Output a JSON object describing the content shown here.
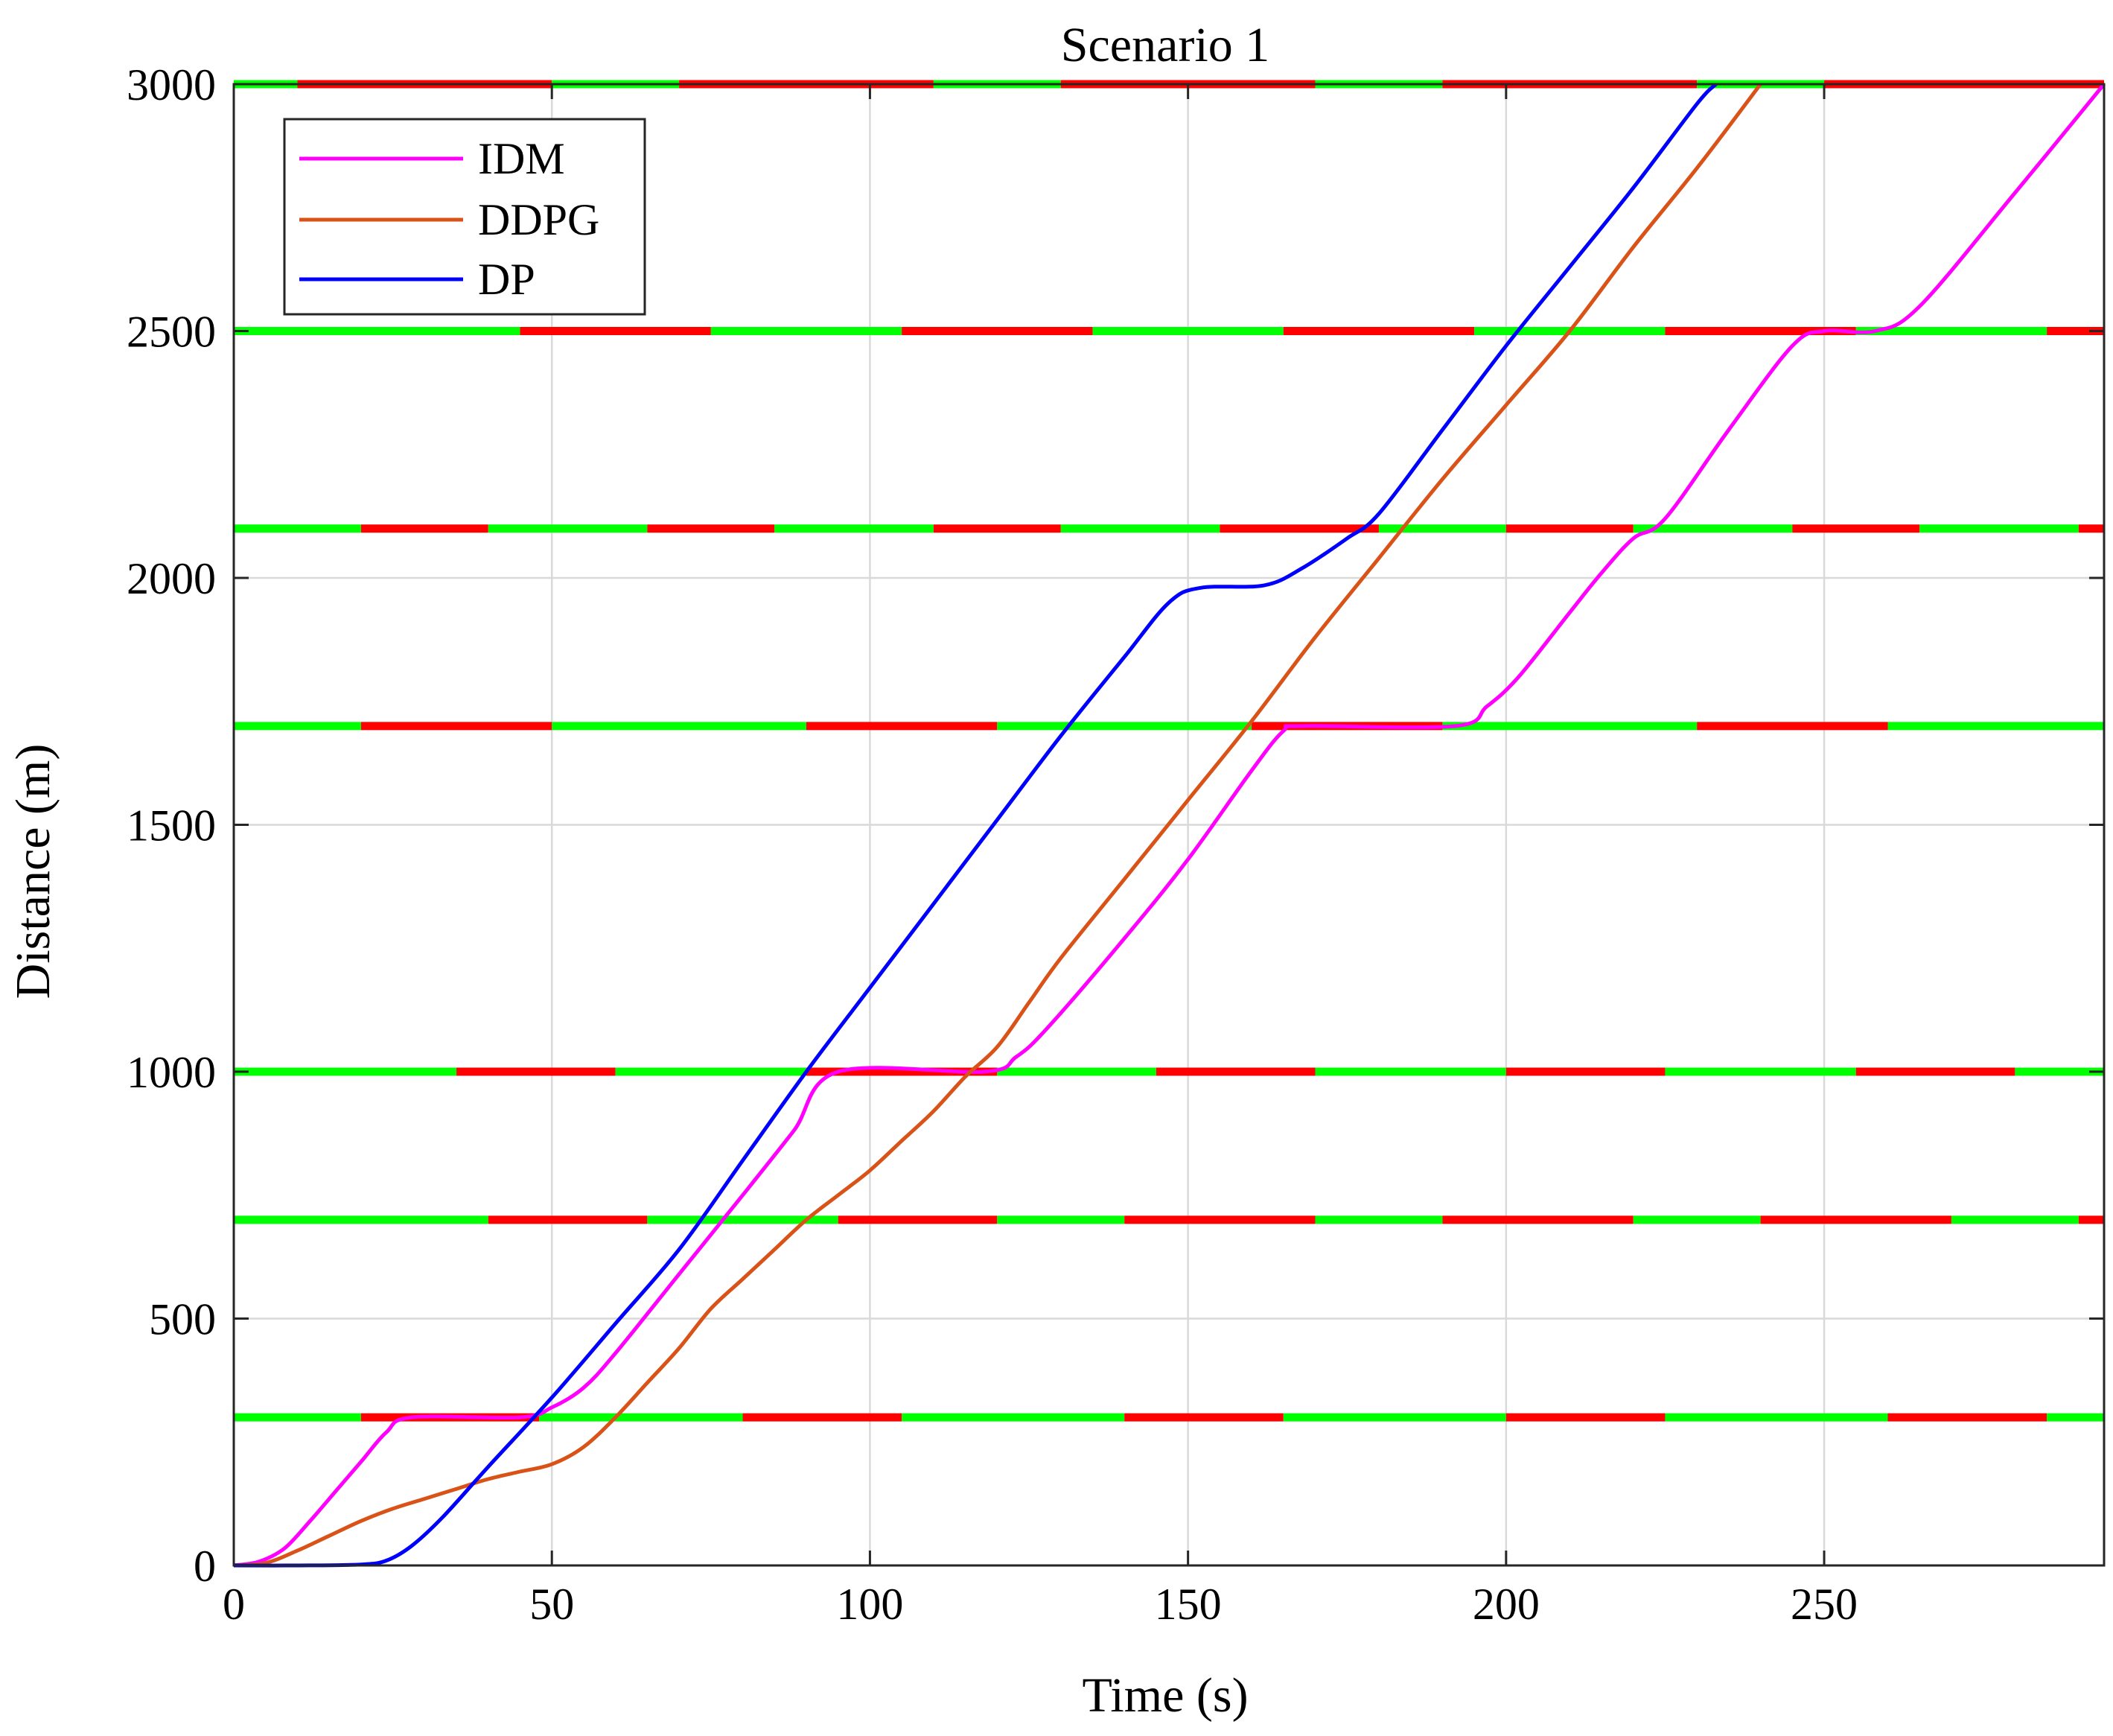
{
  "chart_data": {
    "type": "line",
    "title": "Scenario 1",
    "xlabel": "Time (s)",
    "ylabel": "Distance (m)",
    "xlim": [
      0,
      294
    ],
    "ylim": [
      0,
      3000
    ],
    "x_ticks": [
      0,
      50,
      100,
      150,
      200,
      250
    ],
    "y_ticks": [
      0,
      500,
      1000,
      1500,
      2000,
      2500,
      3000
    ],
    "grid": true,
    "legend": {
      "position": "top-left",
      "entries": [
        "IDM",
        "DDPG",
        "DP"
      ]
    },
    "series": [
      {
        "name": "IDM",
        "color": "#ff00ff",
        "points": [
          [
            0,
            0
          ],
          [
            4,
            8
          ],
          [
            8,
            35
          ],
          [
            12,
            90
          ],
          [
            16,
            150
          ],
          [
            20,
            210
          ],
          [
            24,
            270
          ],
          [
            28,
            300
          ],
          [
            45,
            300
          ],
          [
            50,
            320
          ],
          [
            55,
            360
          ],
          [
            60,
            430
          ],
          [
            70,
            590
          ],
          [
            80,
            750
          ],
          [
            88,
            880
          ],
          [
            95,
            1000
          ],
          [
            118,
            1000
          ],
          [
            123,
            1030
          ],
          [
            128,
            1090
          ],
          [
            140,
            1270
          ],
          [
            150,
            1430
          ],
          [
            160,
            1610
          ],
          [
            165,
            1690
          ],
          [
            168,
            1700
          ],
          [
            192,
            1700
          ],
          [
            197,
            1740
          ],
          [
            202,
            1800
          ],
          [
            210,
            1930
          ],
          [
            215,
            2010
          ],
          [
            220,
            2080
          ],
          [
            225,
            2120
          ],
          [
            235,
            2300
          ],
          [
            245,
            2470
          ],
          [
            250,
            2500
          ],
          [
            258,
            2500
          ],
          [
            265,
            2550
          ],
          [
            280,
            2780
          ],
          [
            294,
            3000
          ]
        ]
      },
      {
        "name": "DDPG",
        "color": "#d95319",
        "points": [
          [
            0,
            0
          ],
          [
            5,
            5
          ],
          [
            10,
            30
          ],
          [
            15,
            60
          ],
          [
            20,
            90
          ],
          [
            25,
            115
          ],
          [
            30,
            135
          ],
          [
            35,
            155
          ],
          [
            40,
            175
          ],
          [
            45,
            190
          ],
          [
            50,
            205
          ],
          [
            55,
            240
          ],
          [
            60,
            300
          ],
          [
            65,
            370
          ],
          [
            70,
            440
          ],
          [
            75,
            520
          ],
          [
            80,
            580
          ],
          [
            85,
            640
          ],
          [
            90,
            700
          ],
          [
            95,
            750
          ],
          [
            100,
            800
          ],
          [
            105,
            860
          ],
          [
            110,
            920
          ],
          [
            115,
            990
          ],
          [
            120,
            1050
          ],
          [
            125,
            1140
          ],
          [
            130,
            1230
          ],
          [
            140,
            1390
          ],
          [
            150,
            1550
          ],
          [
            160,
            1710
          ],
          [
            170,
            1880
          ],
          [
            180,
            2040
          ],
          [
            190,
            2200
          ],
          [
            200,
            2350
          ],
          [
            210,
            2500
          ],
          [
            220,
            2670
          ],
          [
            230,
            2830
          ],
          [
            240,
            3000
          ]
        ]
      },
      {
        "name": "DP",
        "color": "#0000ff",
        "points": [
          [
            0,
            0
          ],
          [
            10,
            0
          ],
          [
            20,
            2
          ],
          [
            24,
            10
          ],
          [
            28,
            40
          ],
          [
            33,
            100
          ],
          [
            40,
            200
          ],
          [
            50,
            340
          ],
          [
            60,
            490
          ],
          [
            70,
            640
          ],
          [
            80,
            820
          ],
          [
            90,
            1000
          ],
          [
            100,
            1170
          ],
          [
            110,
            1340
          ],
          [
            120,
            1510
          ],
          [
            130,
            1680
          ],
          [
            140,
            1840
          ],
          [
            147,
            1950
          ],
          [
            152,
            1980
          ],
          [
            162,
            1985
          ],
          [
            168,
            2020
          ],
          [
            175,
            2080
          ],
          [
            180,
            2130
          ],
          [
            190,
            2300
          ],
          [
            200,
            2470
          ],
          [
            210,
            2630
          ],
          [
            220,
            2790
          ],
          [
            230,
            2960
          ],
          [
            233,
            3000
          ]
        ]
      }
    ],
    "signals": [
      {
        "position": 300,
        "segments": [
          [
            "g",
            0,
            20
          ],
          [
            "r",
            20,
            48
          ],
          [
            "g",
            48,
            80
          ],
          [
            "r",
            80,
            105
          ],
          [
            "g",
            105,
            140
          ],
          [
            "r",
            140,
            165
          ],
          [
            "g",
            165,
            200
          ],
          [
            "r",
            200,
            225
          ],
          [
            "g",
            225,
            260
          ],
          [
            "r",
            260,
            285
          ],
          [
            "g",
            285,
            294
          ]
        ]
      },
      {
        "position": 700,
        "segments": [
          [
            "g",
            0,
            40
          ],
          [
            "r",
            40,
            65
          ],
          [
            "g",
            65,
            95
          ],
          [
            "r",
            95,
            120
          ],
          [
            "g",
            120,
            140
          ],
          [
            "r",
            140,
            170
          ],
          [
            "g",
            170,
            190
          ],
          [
            "r",
            190,
            220
          ],
          [
            "g",
            220,
            240
          ],
          [
            "r",
            240,
            270
          ],
          [
            "g",
            270,
            290
          ],
          [
            "r",
            290,
            294
          ]
        ]
      },
      {
        "position": 1000,
        "segments": [
          [
            "g",
            0,
            35
          ],
          [
            "r",
            35,
            60
          ],
          [
            "g",
            60,
            90
          ],
          [
            "r",
            90,
            120
          ],
          [
            "g",
            120,
            145
          ],
          [
            "r",
            145,
            170
          ],
          [
            "g",
            170,
            200
          ],
          [
            "r",
            200,
            225
          ],
          [
            "g",
            225,
            255
          ],
          [
            "r",
            255,
            280
          ],
          [
            "g",
            280,
            294
          ]
        ]
      },
      {
        "position": 1700,
        "segments": [
          [
            "g",
            0,
            20
          ],
          [
            "r",
            20,
            50
          ],
          [
            "g",
            50,
            90
          ],
          [
            "r",
            90,
            120
          ],
          [
            "g",
            120,
            160
          ],
          [
            "r",
            160,
            190
          ],
          [
            "g",
            190,
            230
          ],
          [
            "r",
            230,
            260
          ],
          [
            "g",
            260,
            294
          ]
        ]
      },
      {
        "position": 2100,
        "segments": [
          [
            "g",
            0,
            20
          ],
          [
            "r",
            20,
            40
          ],
          [
            "g",
            40,
            65
          ],
          [
            "r",
            65,
            85
          ],
          [
            "g",
            85,
            110
          ],
          [
            "r",
            110,
            130
          ],
          [
            "g",
            130,
            155
          ],
          [
            "r",
            155,
            180
          ],
          [
            "g",
            180,
            200
          ],
          [
            "r",
            200,
            220
          ],
          [
            "g",
            220,
            245
          ],
          [
            "r",
            245,
            265
          ],
          [
            "g",
            265,
            290
          ],
          [
            "r",
            290,
            294
          ]
        ]
      },
      {
        "position": 2500,
        "segments": [
          [
            "g",
            0,
            45
          ],
          [
            "r",
            45,
            75
          ],
          [
            "g",
            75,
            105
          ],
          [
            "r",
            105,
            135
          ],
          [
            "g",
            135,
            165
          ],
          [
            "r",
            165,
            195
          ],
          [
            "g",
            195,
            225
          ],
          [
            "r",
            225,
            255
          ],
          [
            "g",
            255,
            285
          ],
          [
            "r",
            285,
            294
          ]
        ]
      },
      {
        "position": 3000,
        "segments": [
          [
            "g",
            0,
            10
          ],
          [
            "r",
            10,
            50
          ],
          [
            "g",
            50,
            70
          ],
          [
            "r",
            70,
            110
          ],
          [
            "g",
            110,
            130
          ],
          [
            "r",
            130,
            170
          ],
          [
            "g",
            170,
            190
          ],
          [
            "r",
            190,
            230
          ],
          [
            "g",
            230,
            250
          ],
          [
            "r",
            250,
            294
          ]
        ]
      }
    ]
  }
}
